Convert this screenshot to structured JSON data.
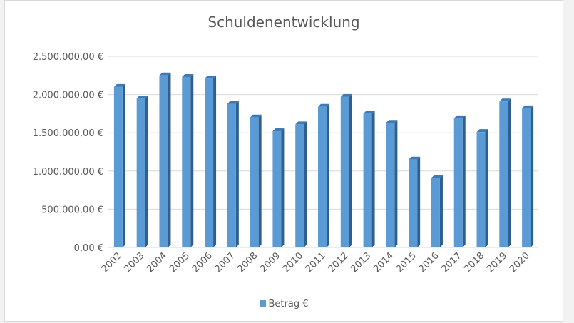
{
  "chart_data": {
    "type": "bar",
    "title": "Schuldenentwicklung",
    "xlabel": "",
    "ylabel": "",
    "categories": [
      "2002",
      "2003",
      "2004",
      "2005",
      "2006",
      "2007",
      "2008",
      "2009",
      "2010",
      "2011",
      "2012",
      "2013",
      "2014",
      "2015",
      "2016",
      "2017",
      "2018",
      "2019",
      "2020"
    ],
    "series": [
      {
        "name": "Betrag €",
        "color": "#5b9bd5",
        "values": [
          2100000,
          1950000,
          2250000,
          2230000,
          2210000,
          1880000,
          1700000,
          1520000,
          1610000,
          1840000,
          1970000,
          1750000,
          1630000,
          1150000,
          910000,
          1690000,
          1510000,
          1910000,
          1820000
        ]
      }
    ],
    "ylim": [
      0,
      2500000
    ],
    "yticks": [
      0,
      500000,
      1000000,
      1500000,
      2000000,
      2500000
    ],
    "ytick_labels": [
      "0,00 €",
      "500.000,00 €",
      "1.000.000,00 €",
      "1.500.000,00 €",
      "2.000.000,00 €",
      "2.500.000,00 €"
    ],
    "grid": true,
    "legend_position": "bottom",
    "style": "3d-column"
  }
}
